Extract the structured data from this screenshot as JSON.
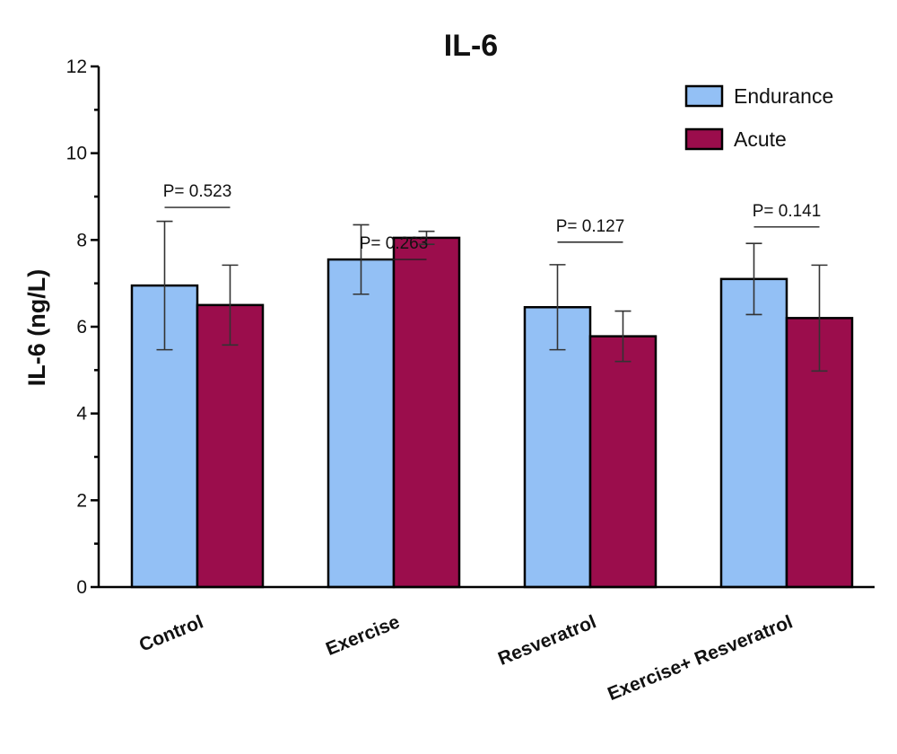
{
  "chart_data": {
    "type": "bar",
    "title": "IL-6",
    "ylabel": "IL-6  (ng/L)",
    "xlabel": "",
    "ylim": [
      0,
      12
    ],
    "yticks": [
      0,
      2,
      4,
      6,
      8,
      10,
      12
    ],
    "categories": [
      "Control",
      "Exercise",
      "Resveratrol",
      "Exercise+ Resveratrol"
    ],
    "series": [
      {
        "name": "Endurance",
        "color": "#93c0f5",
        "values": [
          6.95,
          7.55,
          6.45,
          7.1
        ],
        "errors": [
          1.48,
          0.8,
          0.98,
          0.82
        ]
      },
      {
        "name": "Acute",
        "color": "#9b0d4c",
        "values": [
          6.5,
          8.05,
          5.78,
          6.2
        ],
        "errors": [
          0.92,
          0.15,
          0.58,
          1.22
        ]
      }
    ],
    "annotations": [
      "P= 0.523",
      "P= 0.263",
      "P= 0.127",
      "P= 0.141"
    ],
    "annotation_levels": [
      8.75,
      7.55,
      7.95,
      8.3
    ],
    "legend_position": "top-right",
    "grid": false
  }
}
